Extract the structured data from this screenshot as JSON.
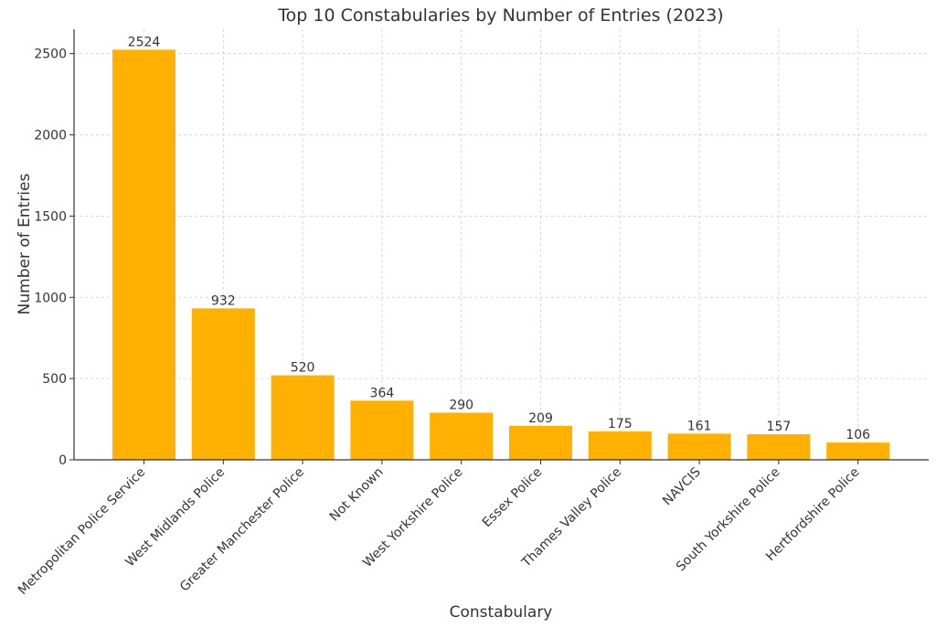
{
  "chart_data": {
    "type": "bar",
    "title": "Top 10 Constabularies by Number of Entries (2023)",
    "xlabel": "Constabulary",
    "ylabel": "Number of Entries",
    "categories": [
      "Metropolitan Police Service",
      "West Midlands Police",
      "Greater Manchester Police",
      "Not Known",
      "West Yorkshire Police",
      "Essex Police",
      "Thames Valley Police",
      "NAVCIS",
      "South Yorkshire Police",
      "Hertfordshire Police"
    ],
    "values": [
      2524,
      932,
      520,
      364,
      290,
      209,
      175,
      161,
      157,
      106
    ],
    "ylim": [
      0,
      2650
    ],
    "yticks": [
      0,
      500,
      1000,
      1500,
      2000,
      2500
    ],
    "grid": true,
    "legend": "none",
    "colors": {
      "bar": "#FFB000"
    }
  }
}
